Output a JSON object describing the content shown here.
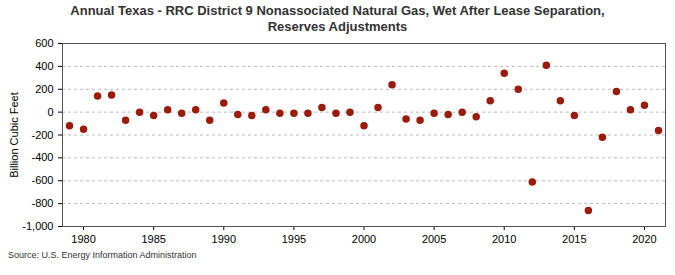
{
  "chart_data": {
    "type": "scatter",
    "title": "Annual Texas - RRC District 9 Nonassociated Natural Gas, Wet After Lease Separation, Reserves Adjustments",
    "y_label": "Billion Cubic Feet",
    "source": "Source: U.S. Energy Information Administration",
    "x": [
      1979,
      1980,
      1981,
      1982,
      1983,
      1984,
      1985,
      1986,
      1987,
      1988,
      1989,
      1990,
      1991,
      1992,
      1993,
      1994,
      1995,
      1996,
      1997,
      1998,
      1999,
      2000,
      2001,
      2002,
      2003,
      2004,
      2005,
      2006,
      2007,
      2008,
      2009,
      2010,
      2011,
      2012,
      2013,
      2014,
      2015,
      2016,
      2017,
      2018,
      2019,
      2020,
      2021
    ],
    "values": [
      -120,
      -150,
      140,
      150,
      -70,
      0,
      -30,
      20,
      -10,
      20,
      -70,
      80,
      -20,
      -30,
      20,
      -10,
      -10,
      -10,
      40,
      -10,
      0,
      -120,
      40,
      240,
      -60,
      -70,
      -10,
      -20,
      0,
      -40,
      100,
      340,
      200,
      -610,
      410,
      100,
      -30,
      -860,
      -220,
      180,
      20,
      60,
      -160
    ],
    "color": "#9b1c0c",
    "marker": "circle",
    "xlim": [
      1978.5,
      2021.5
    ],
    "xticks": [
      1980,
      1985,
      1990,
      1995,
      2000,
      2005,
      2010,
      2015,
      2020
    ],
    "ylim": [
      -1000,
      600
    ],
    "yticks": [
      {
        "value": -1000,
        "label": "-1,000"
      },
      -800,
      -600,
      -400,
      -200,
      0,
      200,
      400,
      600
    ],
    "grid": true
  }
}
